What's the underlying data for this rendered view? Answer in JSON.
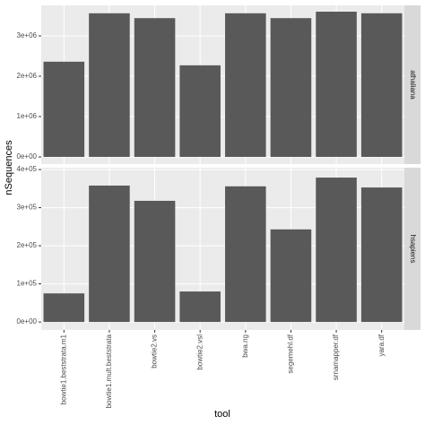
{
  "chart_data": {
    "type": "bar",
    "x_label": "tool",
    "y_label": "nSequences",
    "color": "#595959",
    "categories": [
      "bowtie1.beststrata.m1",
      "bowtie1.mult.beststrata",
      "bowtie2.vs",
      "bowtie2.vsl",
      "bwa.ng",
      "segemehl.df",
      "srnamapper.df",
      "yara.df"
    ],
    "grid": true,
    "facets": [
      {
        "name": "athaliana",
        "values": [
          2360000,
          3560000,
          3440000,
          2270000,
          3560000,
          3440000,
          3600000,
          3560000
        ],
        "ylim": [
          -178000,
          3756000
        ],
        "yticks": [
          {
            "value": 0,
            "label": "0e+00"
          },
          {
            "value": 1000000,
            "label": "1e+06"
          },
          {
            "value": 2000000,
            "label": "2e+06"
          },
          {
            "value": 3000000,
            "label": "3e+06"
          }
        ]
      },
      {
        "name": "hsapiens",
        "values": [
          75000,
          358000,
          318000,
          80000,
          356000,
          243000,
          379000,
          353000
        ],
        "ylim": [
          -21000,
          405000
        ],
        "yticks": [
          {
            "value": 0,
            "label": "0e+00"
          },
          {
            "value": 100000,
            "label": "1e+05"
          },
          {
            "value": 200000,
            "label": "2e+05"
          },
          {
            "value": 300000,
            "label": "3e+05"
          },
          {
            "value": 400000,
            "label": "4e+05"
          }
        ]
      }
    ]
  }
}
